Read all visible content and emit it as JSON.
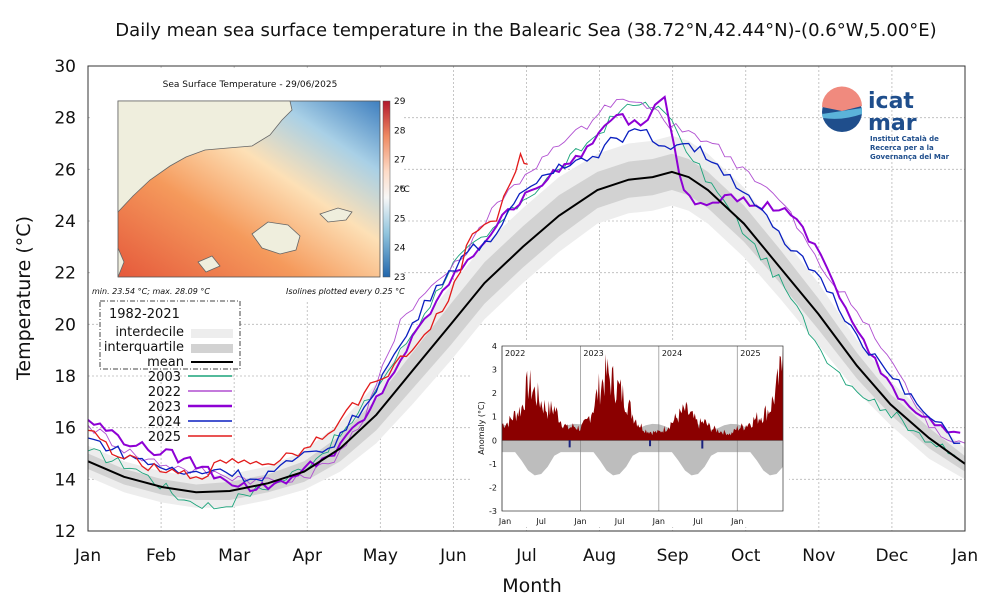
{
  "chart_data": [
    {
      "type": "line",
      "title": "Daily mean sea surface temperature in the Balearic Sea (38.72°N,42.44°N)-(0.6°W,5.00°E)",
      "xlabel": "Month",
      "ylabel": "Temperature (°C)",
      "x_tick_labels": [
        "Jan",
        "Feb",
        "Mar",
        "Apr",
        "May",
        "Jun",
        "Jul",
        "Aug",
        "Sep",
        "Oct",
        "Nov",
        "Dec",
        "Jan"
      ],
      "xlim": [
        0,
        365
      ],
      "ylim": [
        12,
        30
      ],
      "y_ticks": [
        12,
        14,
        16,
        18,
        20,
        22,
        24,
        26,
        28,
        30
      ],
      "grid": true,
      "legend_title": "1982-2021",
      "legend_position": "upper-left",
      "climatology": {
        "labels": {
          "interdecile": "interdecile",
          "interquartile": "interquartile",
          "mean": "mean"
        },
        "x": [
          0,
          15,
          31,
          45,
          59,
          75,
          90,
          105,
          120,
          135,
          151,
          165,
          181,
          196,
          212,
          225,
          235,
          243,
          250,
          258,
          273,
          288,
          304,
          320,
          334,
          350,
          365
        ],
        "mean": [
          14.7,
          14.1,
          13.7,
          13.5,
          13.55,
          13.85,
          14.3,
          15.2,
          16.5,
          18.2,
          20.0,
          21.6,
          23.0,
          24.2,
          25.2,
          25.6,
          25.7,
          25.9,
          25.7,
          25.2,
          23.9,
          22.2,
          20.4,
          18.4,
          16.9,
          15.6,
          14.6
        ],
        "p25": [
          14.4,
          13.8,
          13.4,
          13.2,
          13.2,
          13.5,
          13.9,
          14.7,
          15.9,
          17.5,
          19.2,
          20.8,
          22.2,
          23.4,
          24.5,
          24.9,
          25.0,
          25.2,
          25.0,
          24.5,
          23.2,
          21.6,
          19.8,
          17.9,
          16.5,
          15.2,
          14.3
        ],
        "p75": [
          15.0,
          14.4,
          14.0,
          13.8,
          13.9,
          14.2,
          14.7,
          15.7,
          17.1,
          18.9,
          20.8,
          22.4,
          23.8,
          25.0,
          25.9,
          26.3,
          26.4,
          26.6,
          26.4,
          25.9,
          24.6,
          22.9,
          21.0,
          18.9,
          17.3,
          16.0,
          14.9
        ],
        "p10": [
          14.1,
          13.5,
          13.1,
          12.9,
          12.9,
          13.2,
          13.6,
          14.3,
          15.4,
          16.9,
          18.6,
          20.2,
          21.6,
          22.8,
          23.9,
          24.3,
          24.4,
          24.6,
          24.4,
          23.9,
          22.6,
          21.0,
          19.2,
          17.4,
          16.1,
          14.8,
          14.0
        ],
        "p90": [
          15.3,
          14.7,
          14.3,
          14.1,
          14.2,
          14.5,
          15.1,
          16.2,
          17.7,
          19.6,
          21.5,
          23.1,
          24.5,
          25.7,
          26.6,
          27.0,
          27.1,
          27.3,
          27.1,
          26.6,
          25.3,
          23.5,
          21.6,
          19.4,
          17.8,
          16.4,
          15.2
        ]
      },
      "series": [
        {
          "name": "2003",
          "color": "#1aa37a",
          "x": [
            0,
            20,
            40,
            55,
            65,
            80,
            95,
            110,
            125,
            140,
            152,
            166,
            181,
            196,
            210,
            222,
            232,
            240,
            246,
            252,
            262,
            275,
            290,
            305,
            318,
            332,
            346,
            358,
            363
          ],
          "y": [
            15.1,
            14.4,
            13.2,
            12.9,
            13.4,
            13.9,
            14.8,
            16.2,
            18.2,
            20.4,
            22.4,
            23.4,
            24.8,
            26.0,
            27.2,
            28.3,
            28.6,
            28.2,
            27.3,
            26.3,
            25.1,
            23.3,
            21.4,
            19.0,
            17.6,
            16.7,
            15.8,
            15.0,
            14.7
          ]
        },
        {
          "name": "2022",
          "color": "#b04fd1",
          "x": [
            0,
            20,
            40,
            55,
            70,
            85,
            100,
            115,
            130,
            143,
            155,
            168,
            182,
            196,
            210,
            220,
            228,
            235,
            242,
            250,
            260,
            275,
            290,
            305,
            320,
            335,
            350,
            365
          ],
          "y": [
            16.1,
            14.9,
            14.4,
            14.2,
            14.0,
            13.9,
            14.6,
            16.3,
            20.2,
            21.5,
            22.5,
            24.5,
            25.8,
            26.9,
            27.9,
            28.7,
            28.6,
            28.4,
            27.6,
            27.5,
            27.0,
            25.9,
            24.6,
            22.2,
            20.5,
            18.5,
            16.0,
            15.4
          ]
        },
        {
          "name": "2023",
          "color": "#8e00d4",
          "x": [
            0,
            20,
            40,
            55,
            70,
            85,
            100,
            115,
            130,
            145,
            158,
            170,
            182,
            196,
            210,
            220,
            230,
            236,
            240,
            244,
            248,
            255,
            265,
            278,
            290,
            305,
            318,
            330,
            342,
            355,
            363
          ],
          "y": [
            16.3,
            15.3,
            14.8,
            14.1,
            13.6,
            14.1,
            14.9,
            16.3,
            18.6,
            20.9,
            22.5,
            23.8,
            25.1,
            25.9,
            27.0,
            28.1,
            27.7,
            28.5,
            28.8,
            26.9,
            25.2,
            24.7,
            25.0,
            24.6,
            24.5,
            22.7,
            20.1,
            18.1,
            16.8,
            16.1,
            15.8
          ]
        },
        {
          "name": "2024",
          "color": "#0a1fc0",
          "x": [
            0,
            20,
            40,
            55,
            70,
            85,
            100,
            115,
            130,
            145,
            158,
            170,
            182,
            196,
            210,
            220,
            230,
            240,
            250,
            262,
            275,
            290,
            305,
            320,
            335,
            350,
            363
          ],
          "y": [
            15.6,
            14.8,
            14.2,
            14.4,
            14.0,
            14.7,
            15.2,
            16.8,
            19.2,
            21.5,
            22.8,
            23.5,
            25.2,
            26.2,
            26.5,
            27.2,
            27.5,
            26.9,
            27.0,
            26.2,
            25.0,
            23.1,
            21.8,
            19.6,
            17.9,
            16.4,
            15.4
          ]
        },
        {
          "name": "2025",
          "color": "#e21b1b",
          "x": [
            0,
            15,
            30,
            45,
            60,
            75,
            90,
            105,
            120,
            135,
            150,
            160,
            170,
            176,
            180,
            183
          ],
          "y": [
            15.9,
            14.8,
            14.3,
            14.1,
            14.8,
            14.6,
            15.2,
            16.3,
            17.8,
            19.0,
            20.9,
            23.5,
            24.0,
            25.5,
            26.6,
            26.2
          ]
        }
      ]
    },
    {
      "type": "heatmap",
      "title": "Sea Surface Temperature - 29/06/2025",
      "colorbar_ticks": [
        "29",
        "28",
        "27",
        "26",
        "25",
        "24",
        "23"
      ],
      "colorbar_unit": "°C",
      "colorbar_range": [
        23,
        29
      ],
      "note_left": "min. 23.54 °C; max. 28.09 °C",
      "note_right": "Isolines plotted every 0.25 °C"
    },
    {
      "type": "area",
      "ylabel": "Anomaly (°C)",
      "year_labels": [
        "2022",
        "2023",
        "2024",
        "2025"
      ],
      "x_tick_labels": [
        "Jan",
        "Jul",
        "Jan",
        "Jul",
        "Jan",
        "Jul",
        "Jan"
      ],
      "ylim": [
        -3,
        4
      ],
      "y_ticks": [
        4,
        3,
        2,
        1,
        0,
        -1,
        -2,
        -3
      ],
      "positive_color": "#8b0000",
      "negative_color": "#1a237e",
      "x_months": [
        0,
        1,
        2,
        3,
        4,
        5,
        6,
        7,
        8,
        9,
        10,
        11,
        12,
        13,
        14,
        15,
        16,
        17,
        18,
        19,
        20,
        21,
        22,
        23,
        24,
        25,
        26,
        27,
        28,
        29,
        30,
        31,
        32,
        33,
        34,
        35,
        36,
        37,
        38,
        39,
        40,
        41,
        42,
        43
      ],
      "anomaly": [
        0.8,
        0.9,
        1.3,
        1.6,
        2.8,
        2.4,
        1.9,
        1.5,
        1.6,
        1.0,
        0.6,
        0.7,
        0.6,
        0.9,
        1.7,
        2.7,
        3.3,
        2.9,
        2.5,
        2.0,
        1.3,
        0.8,
        0.5,
        0.4,
        0.4,
        0.6,
        0.9,
        1.2,
        1.5,
        1.2,
        0.8,
        0.9,
        0.6,
        0.5,
        0.4,
        0.3,
        0.6,
        0.7,
        0.9,
        1.1,
        1.3,
        1.6,
        2.5,
        3.9
      ]
    }
  ],
  "logo": {
    "line1": "icat",
    "line2": "mar",
    "sub1": "Institut Català de",
    "sub2": "Recerca per a la",
    "sub3": "Governança del Mar"
  }
}
